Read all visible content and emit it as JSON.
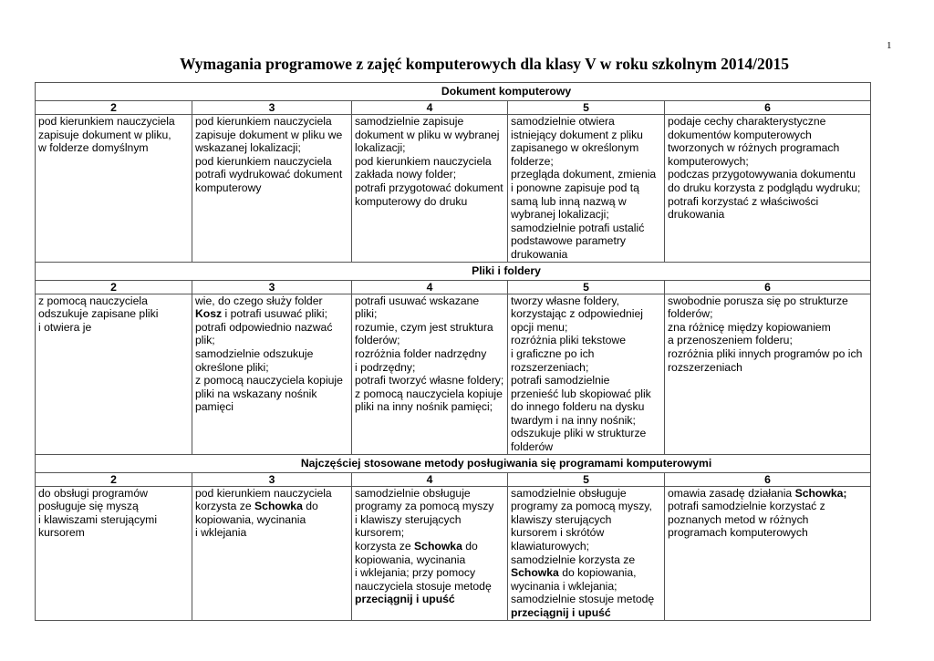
{
  "page_number": "1",
  "title": "Wymagania programowe z zajęć komputerowych dla klasy V w roku szkolnym 2014/2015",
  "grade_headers": [
    "2",
    "3",
    "4",
    "5",
    "6"
  ],
  "sections": [
    {
      "title": "Dokument komputerowy",
      "cells": [
        [
          [
            "pod kierunkiem nauczyciela"
          ],
          [
            "zapisuje dokument w pliku,"
          ],
          [
            "w folderze domyślnym"
          ]
        ],
        [
          [
            "pod kierunkiem nauczyciela"
          ],
          [
            "zapisuje dokument w pliku we"
          ],
          [
            "wskazanej lokalizacji;"
          ],
          [
            "pod kierunkiem nauczyciela"
          ],
          [
            "potrafi wydrukować dokument"
          ],
          [
            "komputerowy"
          ]
        ],
        [
          [
            "samodzielnie zapisuje"
          ],
          [
            "dokument w pliku w wybranej"
          ],
          [
            "lokalizacji;"
          ],
          [
            "pod kierunkiem nauczyciela"
          ],
          [
            "zakłada nowy folder;"
          ],
          [
            "potrafi przygotować dokument"
          ],
          [
            "komputerowy do druku"
          ]
        ],
        [
          [
            "samodzielnie otwiera"
          ],
          [
            "istniejący dokument z pliku"
          ],
          [
            "zapisanego w określonym"
          ],
          [
            "folderze;"
          ],
          [
            "przegląda dokument, zmienia"
          ],
          [
            "i ponowne zapisuje pod tą"
          ],
          [
            "samą lub inną nazwą w"
          ],
          [
            "wybranej lokalizacji;"
          ],
          [
            "samodzielnie potrafi ustalić"
          ],
          [
            "podstawowe parametry"
          ],
          [
            "drukowania"
          ]
        ],
        [
          [
            "podaje cechy charakterystyczne"
          ],
          [
            "dokumentów komputerowych"
          ],
          [
            "tworzonych w różnych programach"
          ],
          [
            "komputerowych;"
          ],
          [
            "podczas przygotowywania dokumentu"
          ],
          [
            "do druku korzysta z podglądu wydruku;"
          ],
          [
            "potrafi korzystać z właściwości"
          ],
          [
            "drukowania"
          ]
        ]
      ]
    },
    {
      "title": "Pliki i foldery",
      "cells": [
        [
          [
            "z pomocą nauczyciela"
          ],
          [
            "odszukuje zapisane pliki"
          ],
          [
            "i otwiera je"
          ]
        ],
        [
          [
            "wie, do czego służy folder"
          ],
          [
            {
              "b": "Kosz"
            },
            " i potrafi usuwać pliki;"
          ],
          [
            "potrafi odpowiednio nazwać"
          ],
          [
            "plik;"
          ],
          [
            "samodzielnie odszukuje"
          ],
          [
            "określone pliki;"
          ],
          [
            "z pomocą nauczyciela kopiuje"
          ],
          [
            "pliki na wskazany nośnik"
          ],
          [
            "pamięci"
          ]
        ],
        [
          [
            "potrafi usuwać wskazane"
          ],
          [
            "pliki;"
          ],
          [
            "rozumie, czym jest struktura"
          ],
          [
            "folderów;"
          ],
          [
            "rozróżnia folder nadrzędny"
          ],
          [
            "i podrzędny;"
          ],
          [
            "potrafi tworzyć własne foldery;"
          ],
          [
            "z pomocą nauczyciela kopiuje"
          ],
          [
            "pliki na inny nośnik pamięci;"
          ]
        ],
        [
          [
            "tworzy własne foldery,"
          ],
          [
            "korzystając z odpowiedniej"
          ],
          [
            "opcji menu;"
          ],
          [
            "rozróżnia pliki tekstowe"
          ],
          [
            "i graficzne po ich"
          ],
          [
            "rozszerzeniach;"
          ],
          [
            "potrafi samodzielnie"
          ],
          [
            "przenieść lub skopiować plik"
          ],
          [
            "do innego folderu na dysku"
          ],
          [
            "twardym i na inny nośnik;"
          ],
          [
            "odszukuje pliki w strukturze"
          ],
          [
            "folderów"
          ]
        ],
        [
          [
            "swobodnie porusza się po strukturze"
          ],
          [
            "folderów;"
          ],
          [
            "zna różnicę między kopiowaniem"
          ],
          [
            "a przenoszeniem folderu;"
          ],
          [
            "rozróżnia pliki innych programów po ich"
          ],
          [
            "rozszerzeniach"
          ]
        ]
      ]
    },
    {
      "title": "Najczęściej stosowane metody posługiwania się programami komputerowymi",
      "cells": [
        [
          [
            "do obsługi programów"
          ],
          [
            "posługuje się myszą"
          ],
          [
            "i klawiszami sterującymi"
          ],
          [
            "kursorem"
          ]
        ],
        [
          [
            "pod kierunkiem nauczyciela"
          ],
          [
            "korzysta ze ",
            {
              "b": "Schowka"
            },
            " do"
          ],
          [
            "kopiowania, wycinania"
          ],
          [
            "i wklejania"
          ]
        ],
        [
          [
            "samodzielnie obsługuje"
          ],
          [
            "programy za pomocą myszy"
          ],
          [
            "i klawiszy sterujących"
          ],
          [
            "kursorem;"
          ],
          [
            "korzysta ze ",
            {
              "b": "Schowka"
            },
            " do"
          ],
          [
            "kopiowania, wycinania"
          ],
          [
            "i wklejania; przy pomocy"
          ],
          [
            "nauczyciela stosuje metodę"
          ],
          [
            {
              "b": "przeciągnij i upuść"
            }
          ]
        ],
        [
          [
            "samodzielnie obsługuje"
          ],
          [
            "programy za pomocą myszy,"
          ],
          [
            "klawiszy sterujących"
          ],
          [
            "kursorem i skrótów"
          ],
          [
            "klawiaturowych;"
          ],
          [
            "samodzielnie korzysta ze"
          ],
          [
            {
              "b": "Schowka"
            },
            " do kopiowania,"
          ],
          [
            "wycinania i wklejania;"
          ],
          [
            "samodzielnie stosuje metodę"
          ],
          [
            {
              "b": "przeciągnij i upuść"
            }
          ]
        ],
        [
          [
            "omawia zasadę działania ",
            {
              "b": "Schowka;"
            }
          ],
          [
            "potrafi samodzielnie korzystać z"
          ],
          [
            "poznanych metod w różnych"
          ],
          [
            "programach komputerowych"
          ]
        ]
      ]
    }
  ]
}
